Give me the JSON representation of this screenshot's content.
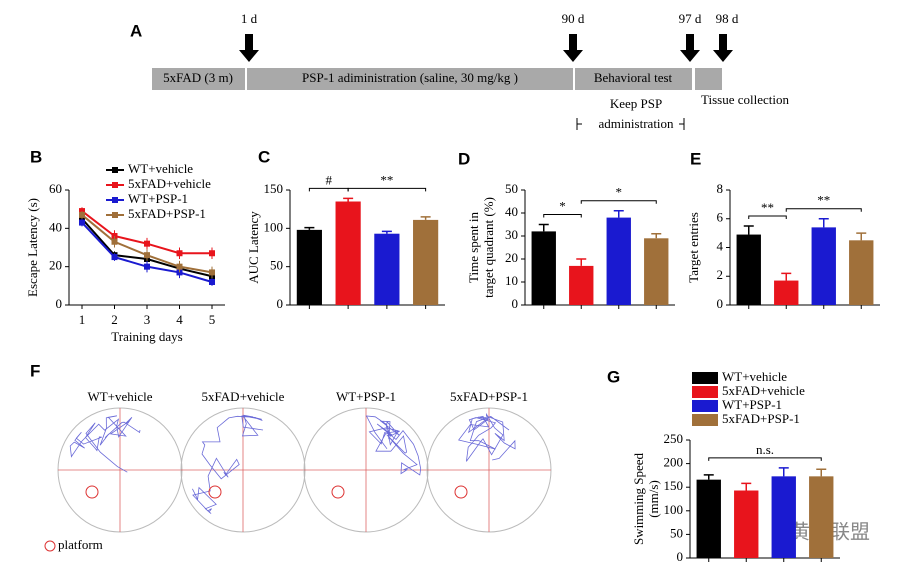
{
  "panel_a": {
    "label": "A",
    "days": [
      "1 d",
      "90 d",
      "97 d",
      "98 d"
    ],
    "segments": [
      "5xFAD (3 m)",
      "PSP-1 adiministration (saline, 30 mg/kg )",
      "Behavioral test"
    ],
    "keep": [
      "Keep PSP",
      "administration"
    ],
    "tissue": "Tissue collection"
  },
  "panel_f": {
    "label": "F",
    "groups": [
      "WT+vehicle",
      "5xFAD+vehicle",
      "WT+PSP-1",
      "5xFAD+PSP-1"
    ],
    "platform": "platform"
  },
  "watermark": "黄精联盟",
  "chart_data": [
    {
      "type": "line",
      "label": "B",
      "ylabel": [
        "Escape Latency (s)"
      ],
      "xlabel": "Training days",
      "x": [
        1,
        2,
        3,
        4,
        5
      ],
      "xlim": [
        0.6,
        5.4
      ],
      "xticks": [
        1,
        2,
        3,
        4,
        5
      ],
      "ylim": [
        0,
        60
      ],
      "yticks": [
        0,
        20,
        40,
        60
      ],
      "series": [
        {
          "name": "WT+vehicle",
          "color": "#000000",
          "values": [
            45,
            26,
            24,
            19,
            15
          ],
          "errors": [
            2,
            2,
            2,
            2,
            2
          ]
        },
        {
          "name": "5xFAD+vehicle",
          "color": "#e8141c",
          "values": [
            49,
            36,
            32,
            27,
            27
          ],
          "errors": [
            2,
            3,
            3,
            3,
            3
          ]
        },
        {
          "name": "WT+PSP-1",
          "color": "#1a1ad0",
          "values": [
            43,
            25,
            20,
            17,
            12
          ],
          "errors": [
            2,
            2,
            3,
            3,
            2
          ]
        },
        {
          "name": "5xFAD+PSP-1",
          "color": "#a0703a",
          "values": [
            47,
            33,
            26,
            20,
            17
          ],
          "errors": [
            2,
            3,
            3,
            3,
            3
          ]
        }
      ]
    },
    {
      "type": "bar",
      "label": "C",
      "ylabel": [
        "AUC Latency"
      ],
      "categories": [
        null,
        null,
        null,
        null
      ],
      "values": [
        98,
        135,
        93,
        111
      ],
      "errors": [
        3,
        4,
        3,
        4
      ],
      "colors": [
        "#000000",
        "#e8141c",
        "#1a1ad0",
        "#a0703a"
      ],
      "ylim": [
        0,
        150
      ],
      "yticks": [
        0,
        50,
        100,
        150
      ],
      "annotations": [
        {
          "text": "#",
          "between": [
            0,
            1
          ]
        },
        {
          "text": "**",
          "between": [
            1,
            3
          ]
        }
      ]
    },
    {
      "type": "bar",
      "label": "D",
      "ylabel": [
        "Time spent in",
        "target quadrant (%)"
      ],
      "categories": [
        null,
        null,
        null,
        null
      ],
      "values": [
        32,
        17,
        38,
        29
      ],
      "errors": [
        3,
        3,
        3,
        2
      ],
      "colors": [
        "#000000",
        "#e8141c",
        "#1a1ad0",
        "#a0703a"
      ],
      "ylim": [
        0,
        50
      ],
      "yticks": [
        0,
        10,
        20,
        30,
        40,
        50
      ],
      "annotations": [
        {
          "text": "*",
          "between": [
            0,
            1
          ]
        },
        {
          "text": "*",
          "between": [
            1,
            3
          ]
        }
      ]
    },
    {
      "type": "bar",
      "label": "E",
      "ylabel": [
        "Target entries"
      ],
      "categories": [
        null,
        null,
        null,
        null
      ],
      "values": [
        4.9,
        1.7,
        5.4,
        4.5
      ],
      "errors": [
        0.6,
        0.5,
        0.6,
        0.5
      ],
      "colors": [
        "#000000",
        "#e8141c",
        "#1a1ad0",
        "#a0703a"
      ],
      "ylim": [
        0,
        8
      ],
      "yticks": [
        0,
        2,
        4,
        6,
        8
      ],
      "annotations": [
        {
          "text": "**",
          "between": [
            0,
            1
          ]
        },
        {
          "text": "**",
          "between": [
            1,
            3
          ]
        }
      ]
    },
    {
      "type": "bar",
      "label": "G",
      "ylabel": [
        "Swimming Speed",
        "(mm/s)"
      ],
      "categories": [
        null,
        null,
        null,
        null
      ],
      "values": [
        166,
        143,
        173,
        173
      ],
      "errors": [
        10,
        15,
        18,
        15
      ],
      "colors": [
        "#000000",
        "#e8141c",
        "#1a1ad0",
        "#a0703a"
      ],
      "ylim": [
        0,
        250
      ],
      "yticks": [
        0,
        50,
        100,
        150,
        200,
        250
      ],
      "legend": [
        "WT+vehicle",
        "5xFAD+vehicle",
        "WT+PSP-1",
        "5xFAD+PSP-1"
      ],
      "annotations": [
        {
          "text": "n.s.",
          "between": [
            0,
            3
          ]
        }
      ]
    }
  ]
}
